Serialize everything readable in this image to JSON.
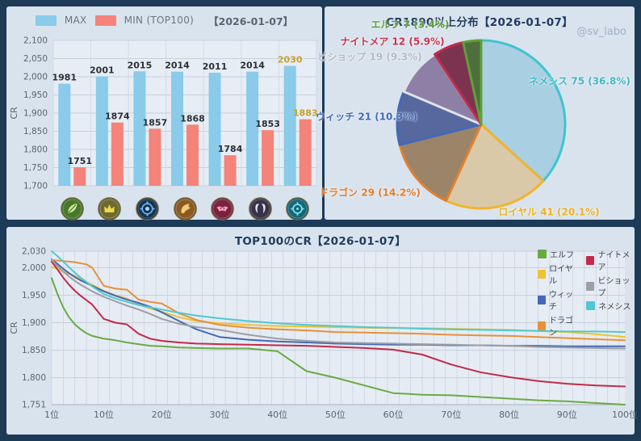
{
  "watermark": "@sv_labo",
  "classes": [
    {
      "key": "elf",
      "label": "エルフ",
      "color": "#6aaa43"
    },
    {
      "key": "royal",
      "label": "ロイヤル",
      "color": "#f1c232"
    },
    {
      "key": "witch",
      "label": "ウィッチ",
      "color": "#4169b8"
    },
    {
      "key": "dragon",
      "label": "ドラゴン",
      "color": "#e69138"
    },
    {
      "key": "nightmare",
      "label": "ナイトメア",
      "color": "#c22a4a"
    },
    {
      "key": "bishop",
      "label": "ビショップ",
      "color": "#9e9ea4"
    },
    {
      "key": "nemesis",
      "label": "ネメシス",
      "color": "#4fc8d2"
    }
  ],
  "chart_data": [
    {
      "id": "max-min-bars",
      "type": "bar",
      "date_label": "【2026-01-07】",
      "ylabel": "CR",
      "ylim": [
        1700,
        2100
      ],
      "yticks": [
        2100,
        2050,
        2000,
        1950,
        1900,
        1850,
        1800,
        1750,
        1700
      ],
      "grid": true,
      "legend_position": "top",
      "categories": [
        "エルフ",
        "ロイヤル",
        "ウィッチ",
        "ドラゴン",
        "ナイトメア",
        "ビショップ",
        "ネメシス"
      ],
      "series": [
        {
          "name": "MAX",
          "color": "#89cbe8",
          "values": [
            1981,
            2001,
            2015,
            2014,
            2011,
            2014,
            2030
          ]
        },
        {
          "name": "MIN (TOP100)",
          "color": "#f4837a",
          "values": [
            1751,
            1874,
            1857,
            1868,
            1784,
            1853,
            1883
          ]
        }
      ],
      "highlight_index": 6,
      "highlight_color": "#c9a227",
      "label_color": "#2b2f36"
    },
    {
      "id": "cr1890-distribution",
      "type": "pie",
      "title": "CR1890以上分布【2026-01-07】",
      "start_angle_deg": -90,
      "clockwise": true,
      "slices": [
        {
          "label": "ネメシス",
          "count": 75,
          "pct": 36.8,
          "color": "#3fc4cc",
          "text_color": "#3fb8c4",
          "fill": "#a9cfe3",
          "label_pos": [
            316,
            92
          ]
        },
        {
          "label": "ロイヤル",
          "count": 41,
          "pct": 20.1,
          "color": "#f0b42e",
          "text_color": "#edb11f",
          "fill": "#d9c9a8",
          "label_pos": [
            278,
            254
          ]
        },
        {
          "label": "ドラゴン",
          "count": 29,
          "pct": 14.2,
          "color": "#e0812f",
          "text_color": "#e07b28",
          "fill": "#9c8468",
          "label_pos": [
            56,
            230
          ]
        },
        {
          "label": "ウィッチ",
          "count": 21,
          "pct": 10.3,
          "color": "#4169b8",
          "text_color": "#4169b8",
          "fill": "#56689e",
          "label_pos": [
            52,
            136
          ]
        },
        {
          "label": "ビショップ",
          "count": 19,
          "pct": 9.3,
          "color": "#dfe3e8",
          "text_color": "#b3bac5",
          "fill": "#8d7fa6",
          "label_pos": [
            56,
            62
          ]
        },
        {
          "label": "ナイトメア",
          "count": 12,
          "pct": 5.9,
          "color": "#c22a4a",
          "text_color": "#c9314f",
          "fill": "#7c3350",
          "label_pos": [
            84,
            43
          ]
        },
        {
          "label": "エルフ",
          "count": 7,
          "pct": 3.4,
          "color": "#5fa03a",
          "text_color": "#58a038",
          "fill": "#4e6e3c",
          "label_pos": [
            106,
            22
          ]
        }
      ]
    },
    {
      "id": "top100-cr",
      "type": "line",
      "title": "TOP100のCR【2026-01-07】",
      "ylabel": "CR",
      "ylim": [
        1751,
        2030
      ],
      "yticks": [
        2030,
        2000,
        1950,
        1900,
        1850,
        1800,
        1751
      ],
      "grid": true,
      "legend_position": "top-right",
      "legend_columns": [
        [
          "エルフ",
          "ロイヤル",
          "ウィッチ",
          "ドラゴン"
        ],
        [
          "ナイトメア",
          "ビショップ",
          "ネメシス"
        ]
      ],
      "xticks": [
        {
          "x": 1,
          "label": "1位"
        },
        {
          "x": 10,
          "label": "10位"
        },
        {
          "x": 20,
          "label": "20位"
        },
        {
          "x": 30,
          "label": "30位"
        },
        {
          "x": 40,
          "label": "40位"
        },
        {
          "x": 50,
          "label": "50位"
        },
        {
          "x": 60,
          "label": "60位"
        },
        {
          "x": 70,
          "label": "70位"
        },
        {
          "x": 80,
          "label": "80位"
        },
        {
          "x": 90,
          "label": "90位"
        },
        {
          "x": 100,
          "label": "100位"
        }
      ],
      "x": [
        1,
        2,
        3,
        4,
        5,
        6,
        7,
        8,
        10,
        12,
        14,
        16,
        18,
        20,
        23,
        26,
        30,
        35,
        40,
        45,
        50,
        55,
        60,
        65,
        70,
        75,
        80,
        85,
        90,
        95,
        100
      ],
      "series": [
        {
          "name": "エルフ",
          "color": "#6aaa43",
          "values": [
            1981,
            1952,
            1928,
            1910,
            1897,
            1888,
            1881,
            1876,
            1871,
            1868,
            1864,
            1861,
            1858,
            1857,
            1855,
            1854,
            1853,
            1853,
            1848,
            1812,
            1800,
            1786,
            1772,
            1769,
            1768,
            1765,
            1762,
            1759,
            1757,
            1754,
            1751
          ]
        },
        {
          "name": "ロイヤル",
          "color": "#f1c232",
          "values": [
            2001,
            1998,
            1993,
            1989,
            1985,
            1980,
            1974,
            1969,
            1958,
            1950,
            1944,
            1933,
            1926,
            1920,
            1910,
            1903,
            1899,
            1896,
            1894,
            1893,
            1892,
            1891,
            1890,
            1890,
            1889,
            1888,
            1887,
            1885,
            1883,
            1879,
            1874
          ]
        },
        {
          "name": "ウィッチ",
          "color": "#4169b8",
          "values": [
            2015,
            2007,
            1998,
            1990,
            1983,
            1977,
            1972,
            1967,
            1957,
            1949,
            1942,
            1936,
            1929,
            1919,
            1903,
            1888,
            1874,
            1869,
            1866,
            1864,
            1862,
            1861,
            1860,
            1860,
            1859,
            1859,
            1858,
            1858,
            1857,
            1857,
            1857
          ]
        },
        {
          "name": "ドラゴン",
          "color": "#e69138",
          "values": [
            2014,
            2013,
            2012,
            2011,
            2010,
            2008,
            2006,
            2000,
            1967,
            1962,
            1960,
            1942,
            1938,
            1935,
            1917,
            1905,
            1896,
            1891,
            1888,
            1886,
            1883,
            1882,
            1881,
            1880,
            1878,
            1877,
            1876,
            1874,
            1872,
            1870,
            1868
          ]
        },
        {
          "name": "ナイトメア",
          "color": "#c22a4a",
          "values": [
            2011,
            1997,
            1982,
            1969,
            1958,
            1949,
            1941,
            1933,
            1907,
            1900,
            1897,
            1880,
            1871,
            1867,
            1864,
            1862,
            1861,
            1860,
            1859,
            1858,
            1856,
            1854,
            1851,
            1842,
            1824,
            1810,
            1801,
            1794,
            1789,
            1786,
            1784
          ]
        },
        {
          "name": "ビショップ",
          "color": "#9e9ea4",
          "values": [
            2014,
            2003,
            1993,
            1984,
            1976,
            1969,
            1963,
            1957,
            1947,
            1939,
            1931,
            1924,
            1916,
            1907,
            1898,
            1892,
            1887,
            1878,
            1871,
            1867,
            1864,
            1863,
            1862,
            1861,
            1860,
            1859,
            1858,
            1856,
            1855,
            1854,
            1853
          ]
        },
        {
          "name": "ネメシス",
          "color": "#4fc8d2",
          "values": [
            2030,
            2021,
            2011,
            2001,
            1991,
            1982,
            1974,
            1966,
            1952,
            1944,
            1938,
            1932,
            1928,
            1924,
            1918,
            1913,
            1908,
            1903,
            1899,
            1896,
            1894,
            1892,
            1891,
            1889,
            1888,
            1887,
            1886,
            1885,
            1884,
            1884,
            1883
          ]
        }
      ]
    }
  ]
}
